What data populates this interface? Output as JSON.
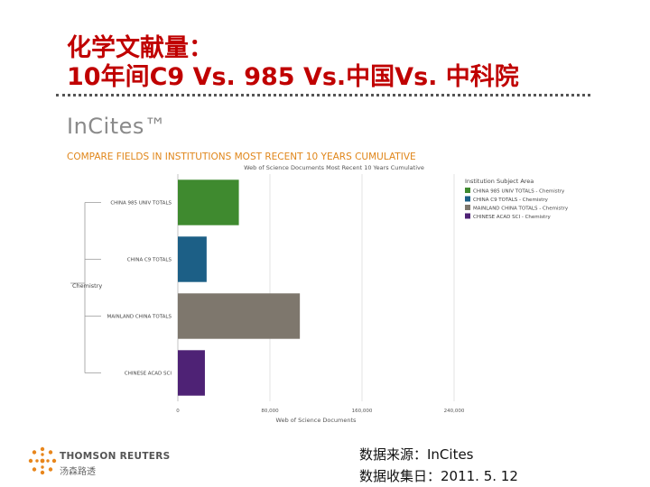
{
  "slide": {
    "title_line1": "化学文献量：",
    "title_line2": "10年间C9 Vs. 985  Vs.中国Vs. 中科院",
    "brand": "InCites™",
    "subtitle": "COMPARE FIELDS IN INSTITUTIONS MOST RECENT 10 YEARS CUMULATIVE",
    "source_line1": "数据来源：InCites",
    "source_line2": "数据收集日：2011. 5. 12",
    "footer_company": "THOMSON REUTERS",
    "footer_company_cn": "汤森路透",
    "accent_color": "#c00000",
    "subtitle_color": "#e0861a"
  },
  "chart_data": {
    "type": "bar",
    "orientation": "horizontal",
    "title": "Web of Science Documents Most Recent 10 Years Cumulative",
    "xlabel": "Web of Science Documents",
    "parent_category": "Chemistry",
    "categories": [
      "CHINA 985 UNIV TOTALS",
      "CHINA C9 TOTALS",
      "MAINLAND CHINA TOTALS",
      "CHINESE ACAD SCI"
    ],
    "values": [
      53000,
      25000,
      106000,
      23500
    ],
    "colors": [
      "#3f8a2f",
      "#1c5f86",
      "#7e776d",
      "#4e2275"
    ],
    "xlim": [
      0,
      240000
    ],
    "xticks": [
      0,
      80000,
      160000,
      240000
    ],
    "xtick_labels": [
      "0",
      "80,000",
      "160,000",
      "240,000"
    ],
    "grid": true,
    "legend_title": "Institution Subject Area",
    "legend_placement": "right",
    "legend": [
      "CHINA 985 UNIV TOTALS - Chemistry",
      "CHINA C9 TOTALS - Chemistry",
      "MAINLAND CHINA TOTALS - Chemistry",
      "CHINESE ACAD SCI - Chemistry"
    ]
  }
}
